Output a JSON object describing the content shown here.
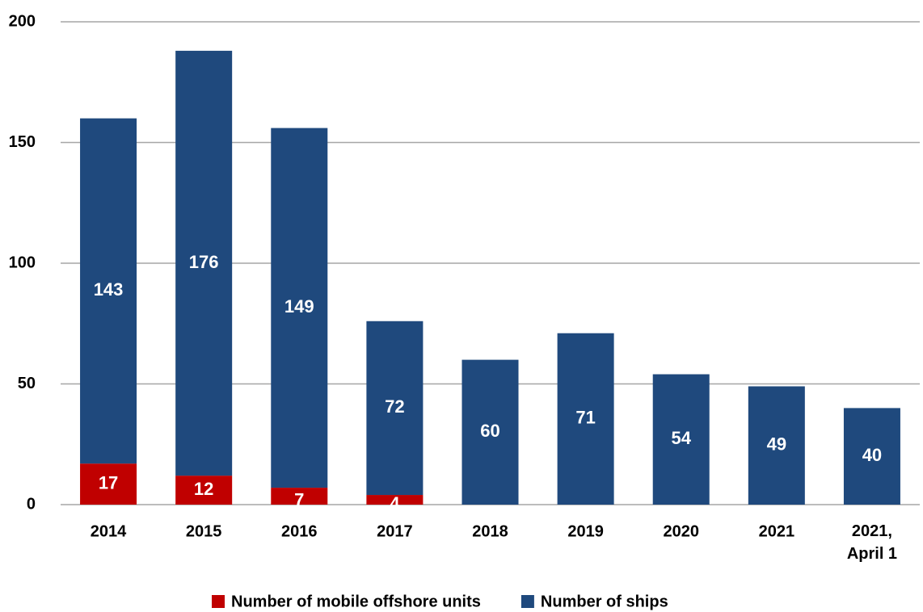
{
  "chart_data": {
    "type": "stacked-bar",
    "categories": [
      "2014",
      "2015",
      "2016",
      "2017",
      "2018",
      "2019",
      "2020",
      "2021",
      "2021,\nApril 1"
    ],
    "series": [
      {
        "name": "Number of mobile offshore units",
        "color": "#c00000",
        "values": [
          17,
          12,
          7,
          4,
          null,
          null,
          null,
          null,
          null
        ]
      },
      {
        "name": "Number of ships",
        "color": "#1f497d",
        "values": [
          143,
          176,
          149,
          72,
          60,
          71,
          54,
          49,
          40
        ]
      }
    ],
    "ylim": [
      0,
      200
    ],
    "yticks": [
      0,
      50,
      100,
      150,
      200
    ],
    "grid": true,
    "legend": "bottom"
  }
}
